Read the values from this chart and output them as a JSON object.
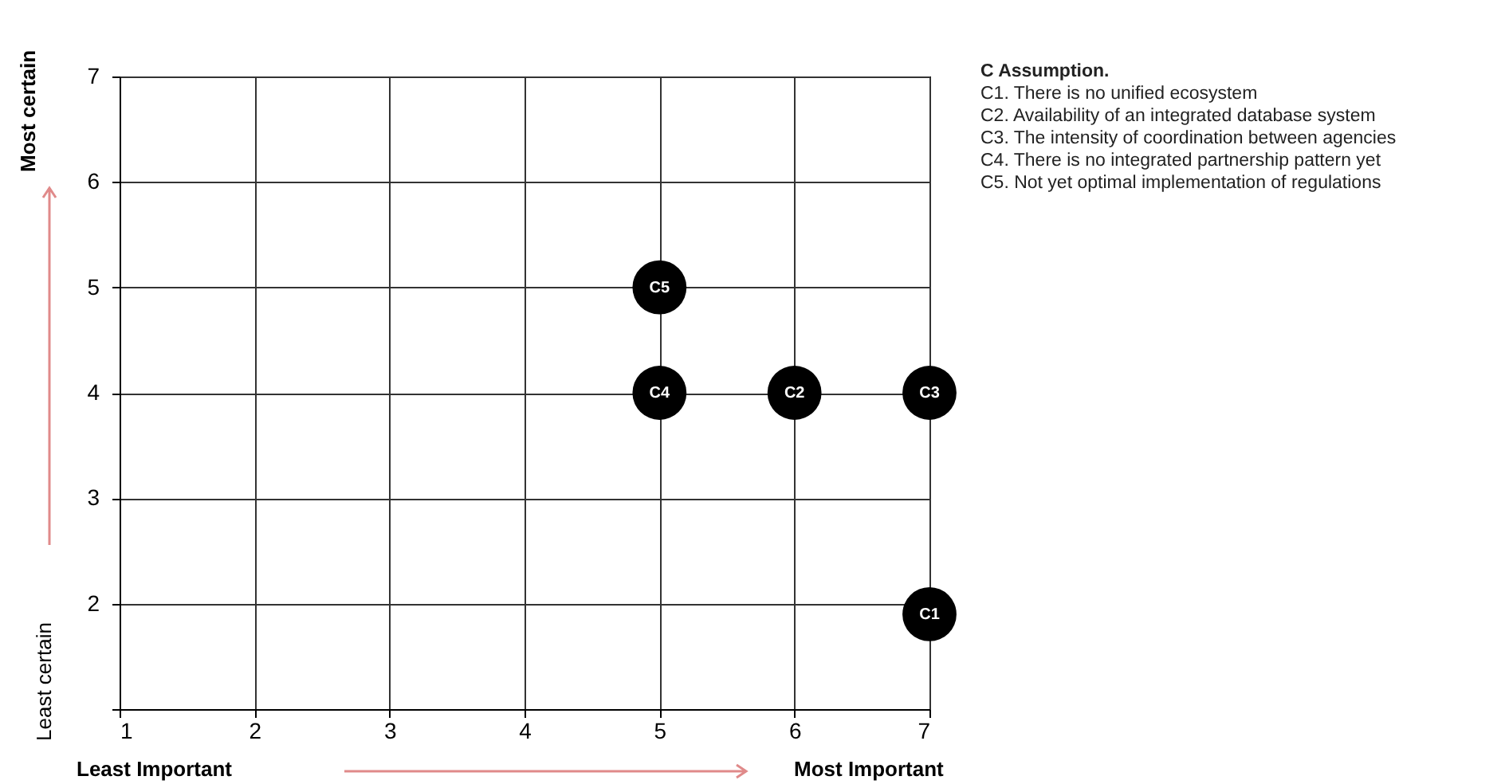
{
  "chart_data": {
    "type": "scatter",
    "xlabel": "Least Important",
    "ylabel": "Least certain",
    "xlim": [
      1,
      7
    ],
    "ylim": [
      1,
      7
    ],
    "xticks": [
      1,
      2,
      3,
      4,
      5,
      6,
      7
    ],
    "yticks": [
      {
        "value": 1,
        "label": null
      },
      2,
      3,
      4,
      5,
      6,
      7
    ],
    "grid": true,
    "marker": "circle",
    "legend": false,
    "series": [
      {
        "name": "C1",
        "color": "#000000",
        "x": [
          7
        ],
        "values": [
          1.9
        ]
      },
      {
        "name": "C2",
        "color": "#000000",
        "x": [
          6
        ],
        "values": [
          4
        ]
      },
      {
        "name": "C3",
        "color": "#000000",
        "x": [
          7
        ],
        "values": [
          4
        ]
      },
      {
        "name": "C4",
        "color": "#000000",
        "x": [
          5
        ],
        "values": [
          4
        ]
      },
      {
        "name": "C5",
        "color": "#000000",
        "x": [
          5
        ],
        "values": [
          5
        ]
      }
    ],
    "annotations": [
      "Most Important",
      "Most certain",
      "C Assumption.",
      "C1. There is no unified ecosystem",
      "C2. Availability of an integrated database system",
      "C3. The intensity of coordination between agencies",
      "C4. There is no integrated partnership pattern yet",
      "C5. Not yet optimal implementation of regulations"
    ]
  }
}
